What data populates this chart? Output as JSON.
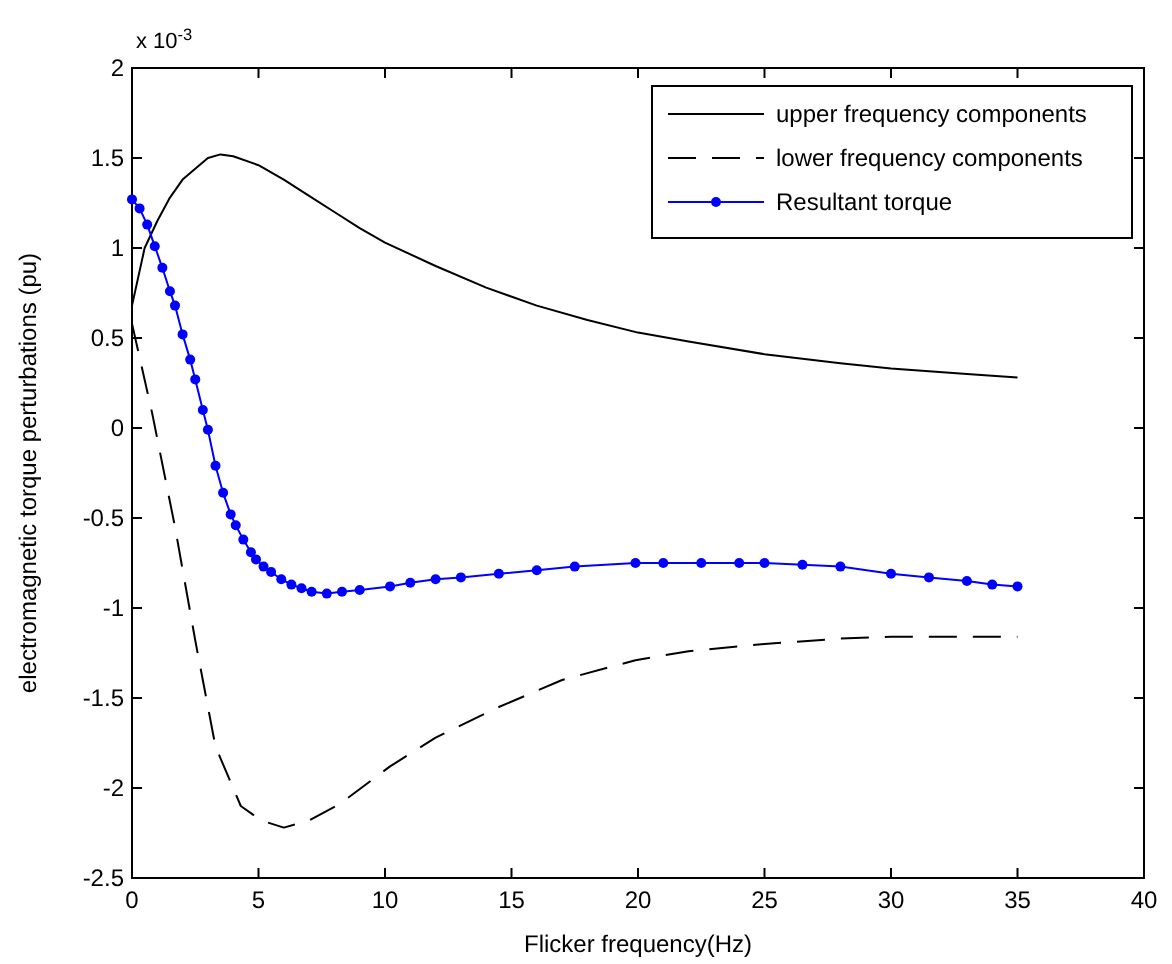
{
  "chart_data": {
    "type": "line",
    "xlabel": "Flicker frequency(Hz)",
    "ylabel": "electromagnetic torque perturbations (pu)",
    "annotations": [
      "x 10$^{-3}$"
    ],
    "xlim": [
      0,
      40
    ],
    "xticks": [
      0,
      5,
      10,
      15,
      20,
      25,
      30,
      35,
      40
    ],
    "ylim": [
      -2.5,
      2
    ],
    "yticks": [
      -2.5,
      -2,
      -1.5,
      -1,
      -0.5,
      0,
      0.5,
      1,
      1.5,
      2
    ],
    "grid": false,
    "legend": "top right",
    "series": [
      {
        "name": "upper frequency components",
        "color": "#000000",
        "line_style": "solid",
        "marker": "none",
        "x": [
          0,
          0.5,
          1,
          1.5,
          2,
          3,
          3.5,
          4,
          5,
          6,
          7,
          8,
          9,
          10,
          12,
          14,
          16,
          18,
          20,
          22,
          25,
          28,
          30,
          33,
          35
        ],
        "values": [
          0.68,
          1.0,
          1.15,
          1.28,
          1.38,
          1.5,
          1.52,
          1.51,
          1.46,
          1.38,
          1.29,
          1.2,
          1.11,
          1.03,
          0.9,
          0.78,
          0.68,
          0.6,
          0.53,
          0.48,
          0.41,
          0.36,
          0.33,
          0.3,
          0.28
        ]
      },
      {
        "name": "lower frequency components",
        "color": "#000000",
        "line_style": "dashed",
        "marker": "none",
        "x": [
          0,
          0.8,
          1.7,
          2.5,
          3.3,
          4.3,
          5.1,
          6,
          7,
          8.2,
          10.2,
          12,
          14.5,
          17,
          19.9,
          22,
          25,
          28,
          30,
          35
        ],
        "values": [
          0.58,
          0.08,
          -0.55,
          -1.18,
          -1.77,
          -2.1,
          -2.18,
          -2.22,
          -2.18,
          -2.09,
          -1.88,
          -1.72,
          -1.55,
          -1.4,
          -1.29,
          -1.24,
          -1.2,
          -1.17,
          -1.16,
          -1.16
        ]
      },
      {
        "name": "Resultant torque",
        "color": "#0000ff",
        "line_style": "solid",
        "marker": "circle",
        "x": [
          0,
          0.3,
          0.6,
          0.9,
          1.2,
          1.5,
          1.7,
          2,
          2.3,
          2.5,
          2.8,
          3,
          3.3,
          3.6,
          3.9,
          4.1,
          4.4,
          4.7,
          4.9,
          5.2,
          5.5,
          5.9,
          6.3,
          6.7,
          7.1,
          7.7,
          8.3,
          9,
          10.2,
          11,
          12,
          13,
          14.5,
          16,
          17.5,
          19.9,
          21,
          22.5,
          24,
          25,
          26.5,
          28,
          30,
          31.5,
          33,
          34,
          35
        ],
        "values": [
          1.27,
          1.22,
          1.13,
          1.01,
          0.89,
          0.76,
          0.68,
          0.52,
          0.38,
          0.27,
          0.1,
          -0.01,
          -0.21,
          -0.36,
          -0.48,
          -0.54,
          -0.62,
          -0.69,
          -0.73,
          -0.77,
          -0.8,
          -0.84,
          -0.87,
          -0.89,
          -0.91,
          -0.92,
          -0.91,
          -0.9,
          -0.88,
          -0.86,
          -0.84,
          -0.83,
          -0.81,
          -0.79,
          -0.77,
          -0.75,
          -0.75,
          -0.75,
          -0.75,
          -0.75,
          -0.76,
          -0.77,
          -0.81,
          -0.83,
          -0.85,
          -0.87,
          -0.88
        ]
      }
    ]
  }
}
